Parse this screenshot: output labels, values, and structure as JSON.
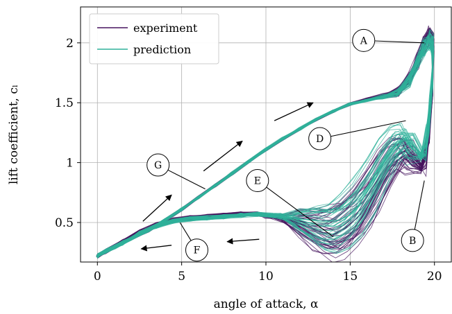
{
  "chart_data": {
    "type": "line",
    "xlabel": "angle of attack, α",
    "ylabel": "lift coefficient, cₗ",
    "xlim": [
      -1,
      21
    ],
    "ylim": [
      0.17,
      2.3
    ],
    "xticks": [
      0,
      5,
      10,
      15,
      20
    ],
    "xtick_labels": [
      "0",
      "5",
      "10",
      "15",
      "20"
    ],
    "yticks": [
      0.5,
      1,
      1.5,
      2
    ],
    "ytick_labels": [
      "0.5",
      "1",
      "1.5",
      "2"
    ],
    "grid": true,
    "legend_position": "top-left",
    "series": [
      {
        "name": "experiment",
        "color": "#46145e",
        "upstroke": {
          "x": [
            0,
            1,
            2,
            3,
            4,
            5,
            6,
            7,
            8,
            9,
            10,
            11,
            12,
            13,
            14,
            15,
            16,
            17,
            17.8,
            18.5,
            19,
            19.4,
            19.7,
            19.9
          ],
          "y": [
            0.22,
            0.29,
            0.36,
            0.43,
            0.52,
            0.61,
            0.71,
            0.81,
            0.91,
            1.01,
            1.11,
            1.2,
            1.28,
            1.36,
            1.43,
            1.49,
            1.53,
            1.56,
            1.59,
            1.7,
            1.85,
            1.98,
            2.05,
            2.0
          ]
        },
        "downstroke": {
          "x": [
            19.9,
            19.7,
            19.5,
            19.2,
            18.8,
            18.3,
            17.7,
            17.0,
            16.3,
            15.5,
            14.7,
            14.0,
            13.3,
            12.5,
            11.5,
            10.5,
            9.5,
            8.5,
            7.5,
            6.5,
            5.5,
            4.5,
            3.5,
            2.5,
            1.5,
            0.5,
            0
          ],
          "y": [
            1.7,
            1.3,
            1.05,
            0.95,
            1.0,
            1.1,
            1.05,
            0.9,
            0.72,
            0.55,
            0.45,
            0.4,
            0.42,
            0.46,
            0.52,
            0.55,
            0.57,
            0.57,
            0.56,
            0.55,
            0.54,
            0.52,
            0.48,
            0.42,
            0.34,
            0.26,
            0.22
          ]
        }
      },
      {
        "name": "prediction",
        "color": "#2fb19a",
        "upstroke": {
          "x": [
            0,
            1,
            2,
            3,
            4,
            5,
            6,
            7,
            8,
            9,
            10,
            11,
            12,
            13,
            14,
            15,
            16,
            17,
            17.8,
            18.5,
            19,
            19.4,
            19.7,
            19.9
          ],
          "y": [
            0.22,
            0.29,
            0.36,
            0.43,
            0.52,
            0.61,
            0.71,
            0.81,
            0.91,
            1.01,
            1.11,
            1.2,
            1.28,
            1.36,
            1.43,
            1.49,
            1.52,
            1.55,
            1.58,
            1.68,
            1.83,
            1.96,
            2.02,
            1.98
          ]
        },
        "downstroke": {
          "x": [
            19.9,
            19.7,
            19.5,
            19.2,
            18.8,
            18.3,
            17.7,
            17.0,
            16.3,
            15.5,
            14.7,
            14.0,
            13.3,
            12.5,
            11.5,
            10.5,
            9.5,
            8.5,
            7.5,
            6.5,
            5.5,
            4.5,
            3.5,
            2.5,
            1.5,
            0.5,
            0
          ],
          "y": [
            1.75,
            1.4,
            1.15,
            1.05,
            1.1,
            1.2,
            1.15,
            1.0,
            0.82,
            0.64,
            0.53,
            0.47,
            0.47,
            0.5,
            0.54,
            0.56,
            0.57,
            0.56,
            0.55,
            0.54,
            0.53,
            0.51,
            0.47,
            0.41,
            0.33,
            0.26,
            0.22
          ]
        }
      }
    ],
    "annotations": [
      {
        "label": "A",
        "circle": [
          15.8,
          2.02
        ],
        "target": [
          19.4,
          2.0
        ]
      },
      {
        "label": "B",
        "circle": [
          18.7,
          0.35
        ],
        "target": [
          19.4,
          0.85
        ]
      },
      {
        "label": "D",
        "circle": [
          13.2,
          1.2
        ],
        "target": [
          18.3,
          1.35
        ]
      },
      {
        "label": "E",
        "circle": [
          9.5,
          0.85
        ],
        "target": [
          14.0,
          0.38
        ]
      },
      {
        "label": "F",
        "circle": [
          5.9,
          0.27
        ],
        "target": [
          4.9,
          0.5
        ]
      },
      {
        "label": "G",
        "circle": [
          3.6,
          0.98
        ],
        "target": [
          6.4,
          0.78
        ]
      }
    ],
    "arrows": [
      {
        "from": [
          2.7,
          0.51
        ],
        "to": [
          4.4,
          0.73
        ]
      },
      {
        "from": [
          6.3,
          0.93
        ],
        "to": [
          8.6,
          1.18
        ]
      },
      {
        "from": [
          10.5,
          1.35
        ],
        "to": [
          12.8,
          1.5
        ]
      },
      {
        "from": [
          9.6,
          0.36
        ],
        "to": [
          7.7,
          0.34
        ]
      },
      {
        "from": [
          4.4,
          0.31
        ],
        "to": [
          2.6,
          0.28
        ]
      }
    ]
  }
}
